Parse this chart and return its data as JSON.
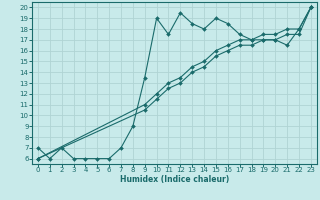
{
  "xlabel": "Humidex (Indice chaleur)",
  "bg_color": "#c8eaea",
  "grid_color": "#b0d4d4",
  "line_color": "#1a6b6b",
  "xlim": [
    -0.5,
    23.5
  ],
  "ylim": [
    5.5,
    20.5
  ],
  "xticks": [
    0,
    1,
    2,
    3,
    4,
    5,
    6,
    7,
    8,
    9,
    10,
    11,
    12,
    13,
    14,
    15,
    16,
    17,
    18,
    19,
    20,
    21,
    22,
    23
  ],
  "yticks": [
    6,
    7,
    8,
    9,
    10,
    11,
    12,
    13,
    14,
    15,
    16,
    17,
    18,
    19,
    20
  ],
  "line1_x": [
    0,
    1,
    2,
    3,
    4,
    5,
    6,
    7,
    8,
    9,
    10,
    11,
    12,
    13,
    14,
    15,
    16,
    17,
    18,
    19,
    20,
    21,
    22,
    23
  ],
  "line1_y": [
    7.0,
    6.0,
    7.0,
    6.0,
    6.0,
    6.0,
    6.0,
    7.0,
    9.0,
    13.5,
    19.0,
    17.5,
    19.5,
    18.5,
    18.0,
    19.0,
    18.5,
    17.5,
    17.0,
    17.0,
    17.0,
    16.5,
    18.0,
    20.0
  ],
  "line2_x": [
    0,
    9,
    10,
    11,
    12,
    13,
    14,
    15,
    16,
    17,
    18,
    19,
    20,
    21,
    22,
    23
  ],
  "line2_y": [
    6.0,
    10.5,
    11.5,
    12.5,
    13.0,
    14.0,
    14.5,
    15.5,
    16.0,
    16.5,
    16.5,
    17.0,
    17.0,
    17.5,
    17.5,
    20.0
  ],
  "line3_x": [
    0,
    9,
    10,
    11,
    12,
    13,
    14,
    15,
    16,
    17,
    18,
    19,
    20,
    21,
    22,
    23
  ],
  "line3_y": [
    6.0,
    11.0,
    12.0,
    13.0,
    13.5,
    14.5,
    15.0,
    16.0,
    16.5,
    17.0,
    17.0,
    17.5,
    17.5,
    18.0,
    18.0,
    20.0
  ]
}
